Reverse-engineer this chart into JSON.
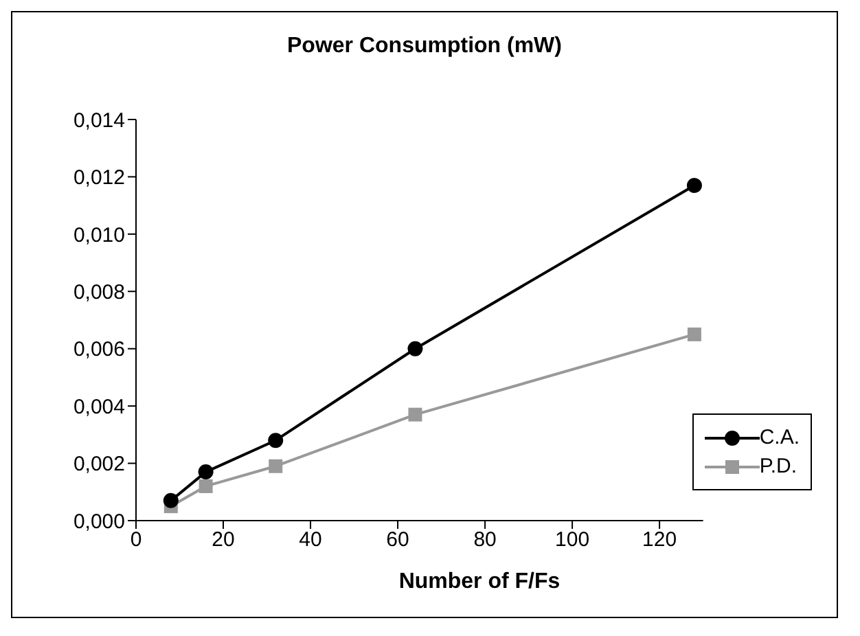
{
  "chart_data": {
    "type": "line",
    "title": "Power Consumption (mW)",
    "xlabel": "Number of F/Fs",
    "xlim": [
      0,
      130
    ],
    "xticks": [
      0,
      20,
      40,
      60,
      80,
      100,
      120
    ],
    "ylim": [
      0,
      0.014
    ],
    "yticks": [
      {
        "value": 0,
        "label": "0,000"
      },
      {
        "value": 0.002,
        "label": "0,002"
      },
      {
        "value": 0.004,
        "label": "0,004"
      },
      {
        "value": 0.006,
        "label": "0,006"
      },
      {
        "value": 0.008,
        "label": "0,008"
      },
      {
        "value": 0.01,
        "label": "0,010"
      },
      {
        "value": 0.012,
        "label": "0,012"
      },
      {
        "value": 0.014,
        "label": "0,014"
      }
    ],
    "x": [
      8,
      16,
      32,
      64,
      128
    ],
    "series": [
      {
        "name": "C.A.",
        "color": "#000000",
        "marker": "circle",
        "values": [
          0.0007,
          0.0017,
          0.0028,
          0.006,
          0.0117
        ]
      },
      {
        "name": "P.D.",
        "color": "#999999",
        "marker": "square",
        "values": [
          0.0005,
          0.0012,
          0.0019,
          0.0037,
          0.0065
        ]
      }
    ],
    "grid": false,
    "legend": "bottom right",
    "line_style": "solid"
  }
}
